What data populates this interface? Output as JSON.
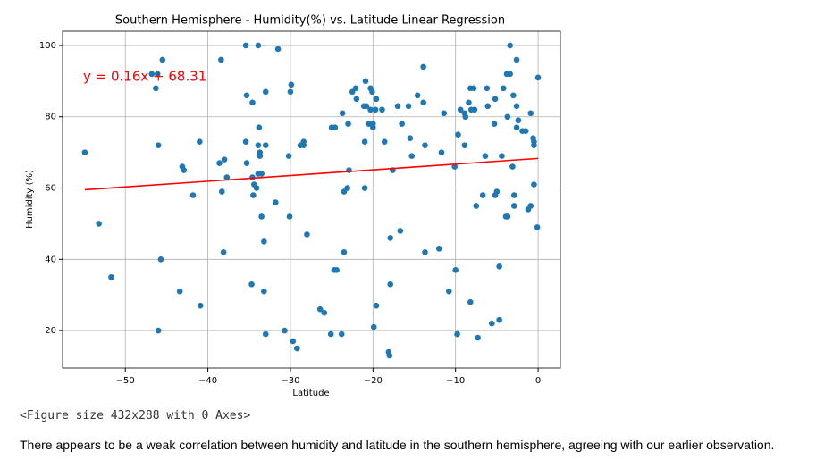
{
  "chart_data": {
    "type": "scatter",
    "title": "Southern Hemisphere - Humidity(%) vs. Latitude Linear Regression",
    "x_label": "Latitude",
    "y_label": "Humidity (%)",
    "annotation": "y = 0.16x + 68.31",
    "regression": {
      "slope": 0.16,
      "intercept": 68.31,
      "color": "#ff0000"
    },
    "color": "#1f77b4",
    "grid": true,
    "xlim": [
      -57.6,
      2.7
    ],
    "ylim": [
      9.5,
      104
    ],
    "xticks": [
      {
        "value": -50,
        "label": "−50"
      },
      {
        "value": -40,
        "label": "−40"
      },
      {
        "value": -30,
        "label": "−30"
      },
      {
        "value": -20,
        "label": "−20"
      },
      {
        "value": -10,
        "label": "−10"
      },
      0
    ],
    "yticks": [
      20,
      40,
      60,
      80,
      100
    ],
    "x": [
      -54.9,
      -53.2,
      -51.7,
      -46.8,
      -46.1,
      -46.3,
      -45.5,
      -46.0,
      -45.7,
      -46.0,
      -43.4,
      -43.1,
      -42.9,
      -41.8,
      -41.0,
      -40.9,
      -38.4,
      -38.6,
      -38.0,
      -37.7,
      -38.3,
      -38.1,
      -35.4,
      -33.9,
      -35.3,
      -34.6,
      -35.4,
      -35.3,
      -34.6,
      -34.4,
      -34.1,
      -34.5,
      -34.7,
      -33.8,
      -33.9,
      -33.7,
      -33.7,
      -33.9,
      -33.5,
      -33.0,
      -33.0,
      -33.5,
      -33.2,
      -33.2,
      -33.0,
      -31.5,
      -31.8,
      -30.7,
      -29.9,
      -30.0,
      -30.2,
      -30.1,
      -29.7,
      -29.2,
      -28.8,
      -28.4,
      -28.4,
      -28.0,
      -26.4,
      -25.9,
      -25.1,
      -25.0,
      -24.6,
      -24.7,
      -24.4,
      -23.8,
      -23.7,
      -23.5,
      -23.5,
      -23.1,
      -22.9,
      -23.0,
      -22.5,
      -22.1,
      -22.0,
      -21.1,
      -20.8,
      -20.9,
      -21.0,
      -21.0,
      -20.5,
      -20.0,
      -20.3,
      -20.1,
      -20.3,
      -19.7,
      -20.0,
      -19.6,
      -19.9,
      -19.6,
      -18.9,
      -18.6,
      -18.1,
      -18.0,
      -17.9,
      -17.9,
      -17.6,
      -17.0,
      -16.5,
      -16.7,
      -15.7,
      -15.5,
      -15.3,
      -14.6,
      -13.9,
      -13.9,
      -13.7,
      -13.7,
      -12.0,
      -11.7,
      -11.4,
      -10.8,
      -10.1,
      -10.0,
      -9.7,
      -9.8,
      -9.4,
      -8.9,
      -8.8,
      -8.9,
      -8.4,
      -8.2,
      -7.8,
      -8.1,
      -7.7,
      -8.2,
      -7.5,
      -7.3,
      -6.7,
      -6.2,
      -6.4,
      -6.1,
      -5.6,
      -5.3,
      -5.2,
      -5.2,
      -5.0,
      -4.7,
      -4.7,
      -4.4,
      -4.2,
      -3.9,
      -3.7,
      -3.8,
      -3.4,
      -3.7,
      -3.4,
      -3.0,
      -3.1,
      -2.9,
      -2.9,
      -2.6,
      -2.6,
      -2.4,
      -2.6,
      -1.9,
      -1.5,
      -1.2,
      -0.9,
      -0.9,
      -0.6,
      -0.5,
      -0.5,
      -0.5,
      -0.1,
      0
    ],
    "values": [
      70,
      50,
      35,
      92,
      92,
      88,
      96,
      72,
      40,
      20,
      31,
      66,
      65,
      58,
      73,
      27,
      96,
      67,
      68,
      63,
      59,
      42,
      100,
      100,
      86,
      84,
      73,
      67,
      63,
      61,
      60,
      58,
      33,
      77,
      72,
      70,
      69,
      64,
      64,
      87,
      72,
      52,
      45,
      31,
      19,
      99,
      56,
      20,
      89,
      87,
      69,
      52,
      17,
      15,
      72,
      72,
      73,
      47,
      26,
      25,
      19,
      77,
      77,
      37,
      37,
      19,
      81,
      59,
      42,
      60,
      65,
      78,
      87,
      88,
      85,
      83,
      83,
      90,
      73,
      60,
      78,
      78,
      88,
      87,
      82,
      82,
      77,
      85,
      21,
      27,
      82,
      73,
      14,
      13,
      33,
      46,
      65,
      83,
      78,
      48,
      83,
      74,
      69,
      86,
      94,
      84,
      72,
      42,
      43,
      70,
      81,
      31,
      66,
      37,
      75,
      19,
      82,
      81,
      80,
      72,
      84,
      88,
      88,
      82,
      82,
      28,
      55,
      18,
      58,
      88,
      69,
      83,
      22,
      78,
      85,
      58,
      59,
      38,
      23,
      69,
      88,
      52,
      52,
      92,
      92,
      80,
      100,
      86,
      66,
      58,
      55,
      96,
      83,
      79,
      77,
      76,
      76,
      54,
      55,
      81,
      74,
      73,
      72,
      61,
      49,
      91
    ]
  },
  "output_text": "<Figure size 432x288 with 0 Axes>",
  "markdown": "There appears to be a weak correlation between humidity and latitude in the southern hemisphere, agreeing with our earlier observation."
}
